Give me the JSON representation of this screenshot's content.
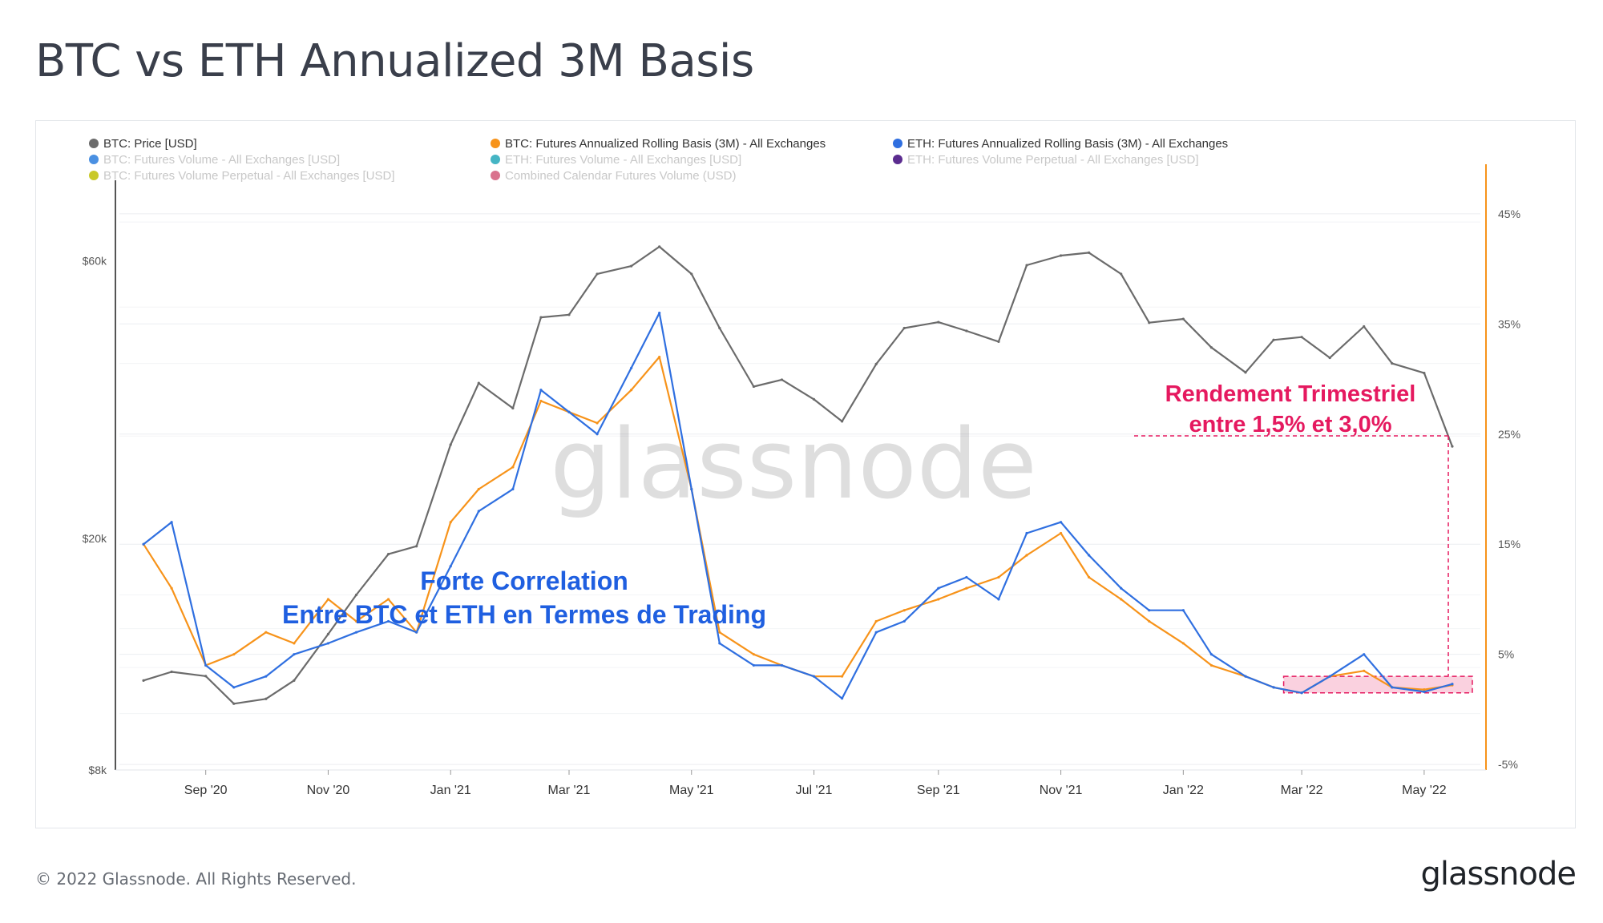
{
  "page": {
    "title": "BTC vs ETH Annualized 3M Basis",
    "copyright": "© 2022 Glassnode. All Rights Reserved.",
    "logo": "glassnode"
  },
  "chart_data": {
    "type": "line",
    "watermark": "glassnode",
    "legend": [
      {
        "label": "BTC: Price [USD]",
        "color": "#6b6b6b",
        "active": true
      },
      {
        "label": "BTC: Futures Annualized Rolling Basis (3M) - All Exchanges",
        "color": "#f7931a",
        "active": true
      },
      {
        "label": "ETH: Futures Annualized Rolling Basis (3M) - All Exchanges",
        "color": "#2f6fe0",
        "active": true
      },
      {
        "label": "BTC: Futures Volume - All Exchanges [USD]",
        "color": "#4a90e2",
        "active": false
      },
      {
        "label": "ETH: Futures Volume - All Exchanges [USD]",
        "color": "#45b5c4",
        "active": false
      },
      {
        "label": "ETH: Futures Volume Perpetual - All Exchanges [USD]",
        "color": "#5b2c8f",
        "active": false
      },
      {
        "label": "BTC: Futures Volume Perpetual - All Exchanges [USD]",
        "color": "#c9c92a",
        "active": false
      },
      {
        "label": "Combined Calendar Futures Volume (USD)",
        "color": "#d9728d",
        "active": false
      }
    ],
    "x_ticks": [
      "Sep '20",
      "Nov '20",
      "Jan '21",
      "Mar '21",
      "May '21",
      "Jul '21",
      "Sep '21",
      "Nov '21",
      "Jan '22",
      "Mar '22",
      "May '22"
    ],
    "y_left": {
      "scale": "log",
      "ticks": [
        "$8k",
        "$20k",
        "$60k"
      ],
      "tick_values": [
        8000,
        20000,
        60000
      ],
      "range": [
        8000,
        88000
      ]
    },
    "y_right": {
      "scale": "linear",
      "ticks": [
        "-5%",
        "5%",
        "15%",
        "25%",
        "35%",
        "45%"
      ],
      "tick_values": [
        -5,
        5,
        15,
        25,
        35,
        45
      ],
      "range": [
        -5.5,
        49.5
      ]
    },
    "x": [
      "2020-08-01",
      "2020-08-15",
      "2020-09-01",
      "2020-09-15",
      "2020-10-01",
      "2020-10-15",
      "2020-11-01",
      "2020-11-15",
      "2020-12-01",
      "2020-12-15",
      "2021-01-01",
      "2021-01-15",
      "2021-02-01",
      "2021-02-15",
      "2021-03-01",
      "2021-03-15",
      "2021-04-01",
      "2021-04-15",
      "2021-05-01",
      "2021-05-15",
      "2021-06-01",
      "2021-06-15",
      "2021-07-01",
      "2021-07-15",
      "2021-08-01",
      "2021-08-15",
      "2021-09-01",
      "2021-09-15",
      "2021-10-01",
      "2021-10-15",
      "2021-11-01",
      "2021-11-15",
      "2021-12-01",
      "2021-12-15",
      "2022-01-01",
      "2022-01-15",
      "2022-02-01",
      "2022-02-15",
      "2022-03-01",
      "2022-03-15",
      "2022-04-01",
      "2022-04-15",
      "2022-05-01",
      "2022-05-15"
    ],
    "series": [
      {
        "name": "BTC: Price [USD]",
        "axis": "left",
        "color": "#6b6b6b",
        "values": [
          11400,
          11800,
          11600,
          10400,
          10600,
          11400,
          13700,
          16000,
          18800,
          19400,
          29000,
          37000,
          33500,
          48000,
          48500,
          57000,
          58800,
          63500,
          57000,
          46000,
          36500,
          37500,
          34700,
          31800,
          39900,
          46000,
          47100,
          45500,
          43600,
          59000,
          61300,
          62000,
          57000,
          47000,
          47700,
          42600,
          38600,
          43900,
          44400,
          40900,
          46300,
          40000,
          38500,
          28800
        ]
      },
      {
        "name": "BTC: Futures Annualized Rolling Basis (3M) - All Exchanges",
        "axis": "right",
        "color": "#f7931a",
        "values": [
          15,
          11,
          4,
          5,
          7,
          6,
          10,
          8,
          10,
          7,
          17,
          20,
          22,
          28,
          27,
          26,
          29,
          32,
          20,
          7,
          5,
          4,
          3,
          3,
          8,
          9,
          10,
          11,
          12,
          14,
          16,
          12,
          10,
          8,
          6,
          4,
          3,
          2,
          1.5,
          3,
          3.5,
          2,
          1.8,
          2.2
        ]
      },
      {
        "name": "ETH: Futures Annualized Rolling Basis (3M) - All Exchanges",
        "axis": "right",
        "color": "#2f6fe0",
        "values": [
          15,
          17,
          4,
          2,
          3,
          5,
          6,
          7,
          8,
          7,
          13,
          18,
          20,
          29,
          27,
          25,
          31,
          36,
          20,
          6,
          4,
          4,
          3,
          1,
          7,
          8,
          11,
          12,
          10,
          16,
          17,
          14,
          11,
          9,
          9,
          5,
          3,
          2,
          1.5,
          3,
          5,
          2,
          1.6,
          2.3
        ]
      }
    ],
    "annotations": [
      {
        "text_lines": [
          "Rendement Trimestriel",
          "entre 1,5% et 3,0%"
        ],
        "color": "#e5195f"
      },
      {
        "text_lines": [
          "Forte Correlation",
          "Entre BTC et  ETH en Termes de Trading"
        ],
        "color": "#1f5fe0"
      }
    ],
    "highlight_band": {
      "x_start": "2022-02-20",
      "x_end": "2022-05-25",
      "y_low": 1.5,
      "y_high": 3.0,
      "color": "#e5195f"
    },
    "grid": true,
    "legend_position": "top"
  }
}
